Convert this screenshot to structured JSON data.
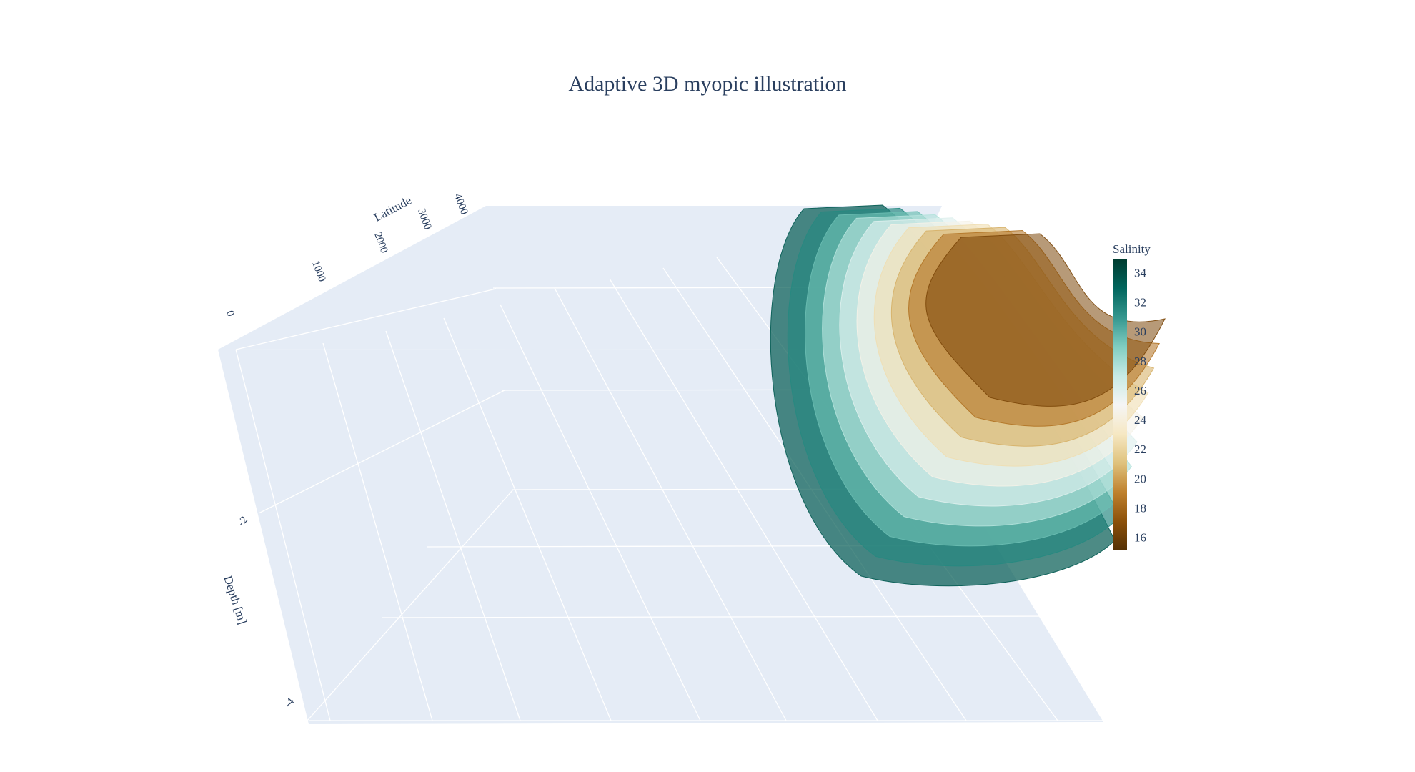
{
  "title": "Adaptive 3D myopic illustration",
  "chart_data": {
    "type": "isosurface",
    "title": "Adaptive 3D myopic illustration",
    "axes": {
      "latitude": {
        "label": "Latitude",
        "ticks": [
          0,
          1000,
          2000,
          3000,
          4000
        ],
        "tick_labels": [
          "0",
          "1000",
          "2000",
          "3000",
          "4000"
        ]
      },
      "depth": {
        "label": "Depth [m]",
        "ticks": [
          -2,
          -4
        ],
        "tick_labels": [
          "-2",
          "-4"
        ]
      }
    },
    "colorbar": {
      "title": "Salinity",
      "colorscale": "BrBG",
      "ticks": [
        16,
        18,
        20,
        22,
        24,
        26,
        28,
        30,
        32,
        34
      ],
      "tick_labels": [
        "16",
        "18",
        "20",
        "22",
        "24",
        "26",
        "28",
        "30",
        "32",
        "34"
      ],
      "range": [
        15.1,
        34.9
      ],
      "colors": [
        "#543005",
        "#8c510a",
        "#bf812d",
        "#dfc27d",
        "#f6e8c3",
        "#f5f5f5",
        "#c7eae5",
        "#80cdc1",
        "#35978f",
        "#01665e",
        "#003c30"
      ]
    },
    "isosurfaces": [
      {
        "salinity": 33.5
      },
      {
        "salinity": 31.5
      },
      {
        "salinity": 29.5
      },
      {
        "salinity": 27.5
      },
      {
        "salinity": 26.0
      },
      {
        "salinity": 24.5
      },
      {
        "salinity": 22.5
      },
      {
        "salinity": 20.5
      },
      {
        "salinity": 18.5
      },
      {
        "salinity": 16.5
      }
    ],
    "grid": true,
    "background": "#e5ecf6",
    "grid_color": "#ffffff"
  }
}
